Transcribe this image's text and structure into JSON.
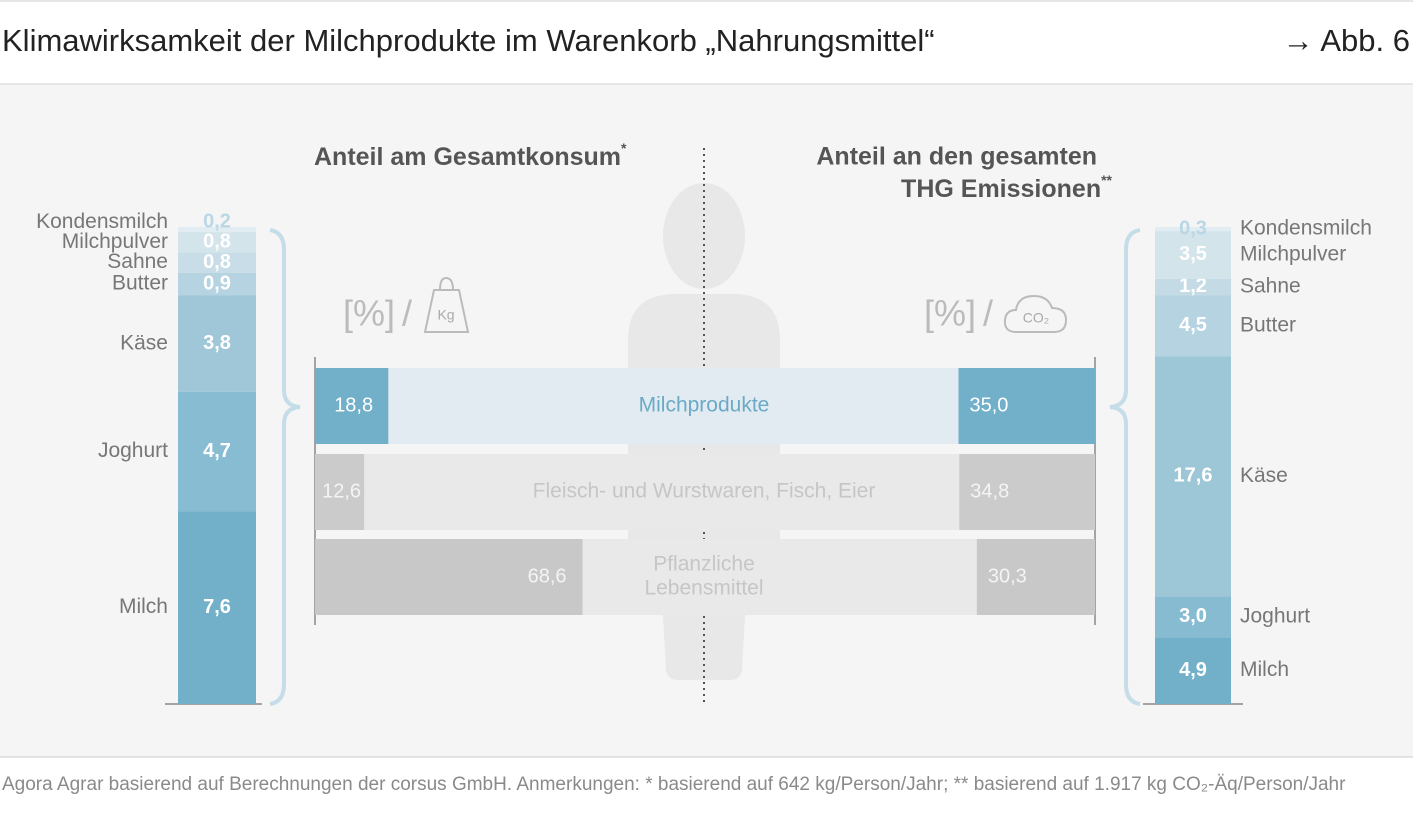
{
  "header": {
    "title": "Klimawirksamkeit der Milchprodukte im Warenkorb „Nahrungsmittel“",
    "figure_ref": "→ Abb. 6"
  },
  "chart_data": [
    {
      "type": "stacked-column",
      "side": "left",
      "categories": [
        "Kondensmilch",
        "Milchpulver",
        "Sahne",
        "Butter",
        "Käse",
        "Joghurt",
        "Milch"
      ],
      "values": [
        0.2,
        0.8,
        0.8,
        0.9,
        3.8,
        4.7,
        7.6
      ],
      "value_labels": [
        "0,2",
        "0,8",
        "0,8",
        "0,9",
        "3,8",
        "4,7",
        "7,6"
      ],
      "colors": [
        "#e1edf2",
        "#d3e4eb",
        "#c8dde7",
        "#b5d3e0",
        "#9fc7d8",
        "#88bcd2",
        "#72b0c9"
      ]
    },
    {
      "type": "split-bar",
      "left_title": "Anteil am Gesamtkonsum",
      "left_title_mark": "*",
      "right_title": [
        "Anteil an den gesamten",
        "THG Emissionen"
      ],
      "right_title_mark": "**",
      "left_unit": "[%]",
      "right_unit": "[%]",
      "separator": "/",
      "left_icon_label": "Kg",
      "right_icon_label": "CO₂",
      "categories": [
        "Milchprodukte",
        "Fleisch- und Wurstwaren, Fisch, Eier",
        [
          "Pflanzliche",
          "Lebensmittel"
        ]
      ],
      "left_values": [
        18.8,
        12.6,
        68.6
      ],
      "left_value_labels": [
        "18,8",
        "12,6",
        "68,6"
      ],
      "right_values": [
        35.0,
        34.8,
        30.3
      ],
      "right_value_labels": [
        "35,0",
        "34,8",
        "30,3"
      ],
      "box_colors": [
        "#72afc9",
        "#cbcbcb",
        "#c8c8c8"
      ],
      "band_colors": [
        "#e2ebf1",
        "#e9e9e9",
        "#e9e9e9"
      ],
      "label_colors": [
        "#6aaac6",
        "#c6c6c6",
        "#c6c6c6"
      ]
    },
    {
      "type": "stacked-column",
      "side": "right",
      "categories": [
        "Kondensmilch",
        "Milchpulver",
        "Sahne",
        "Butter",
        "Käse",
        "Joghurt",
        "Milch"
      ],
      "values": [
        0.3,
        3.5,
        1.2,
        4.5,
        17.6,
        3.0,
        4.9
      ],
      "value_labels": [
        "0,3",
        "3,5",
        "1,2",
        "4,5",
        "17,6",
        "3,0",
        "4,9"
      ],
      "colors": [
        "#e1edf2",
        "#d3e4eb",
        "#c4dbe6",
        "#b5d3e0",
        "#9dc6d7",
        "#86bbd1",
        "#72b0c9"
      ]
    }
  ],
  "footer": "Agora Agrar basierend auf Berechnungen der corsus GmbH. Anmerkungen: * basierend auf 642 kg/Person/Jahr; ** basierend auf 1.917 kg CO₂-Äq/Person/Jahr"
}
